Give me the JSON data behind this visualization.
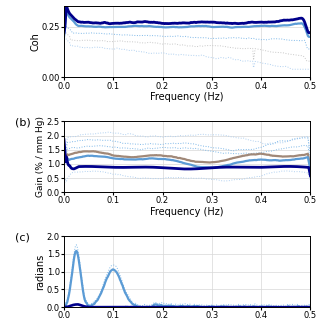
{
  "panel_a": {
    "ylabel": "Coh",
    "xlabel": "Frequency (Hz)",
    "xlim": [
      0.0,
      0.5
    ],
    "ylim": [
      0.0,
      0.35
    ],
    "yticks": [
      0.0,
      0.25
    ],
    "xticks": [
      0.0,
      0.1,
      0.2,
      0.3,
      0.4,
      0.5
    ]
  },
  "panel_b": {
    "ylabel": "Gain (% / mm Hg)",
    "xlabel": "Frequency (Hz)",
    "xlim": [
      0.0,
      0.5
    ],
    "ylim": [
      0.0,
      2.5
    ],
    "yticks": [
      0.0,
      0.5,
      1.0,
      1.5,
      2.0,
      2.5
    ],
    "xticks": [
      0.0,
      0.1,
      0.2,
      0.3,
      0.4,
      0.5
    ],
    "label": "(b)"
  },
  "panel_c": {
    "ylabel": "radians",
    "xlabel": "",
    "xlim": [
      0.0,
      0.5
    ],
    "ylim": [
      0.0,
      2.0
    ],
    "yticks": [
      0.0,
      0.5,
      1.0,
      1.5,
      2.0
    ],
    "xticks": [
      0.0,
      0.1,
      0.2,
      0.3,
      0.4,
      0.5
    ],
    "label": "(c)"
  },
  "lw_main": 1.6,
  "lw_conf": 0.7,
  "grid_color": "#D8D8D8",
  "colors": {
    "dark_blue": "#00008B",
    "mid_blue": "#4169E1",
    "steel_blue": "#5B9BD5",
    "light_blue": "#7EB8E8",
    "pale_blue": "#B0D0F0",
    "gray_brown": "#A08878",
    "light_gray": "#C8C8C8"
  }
}
